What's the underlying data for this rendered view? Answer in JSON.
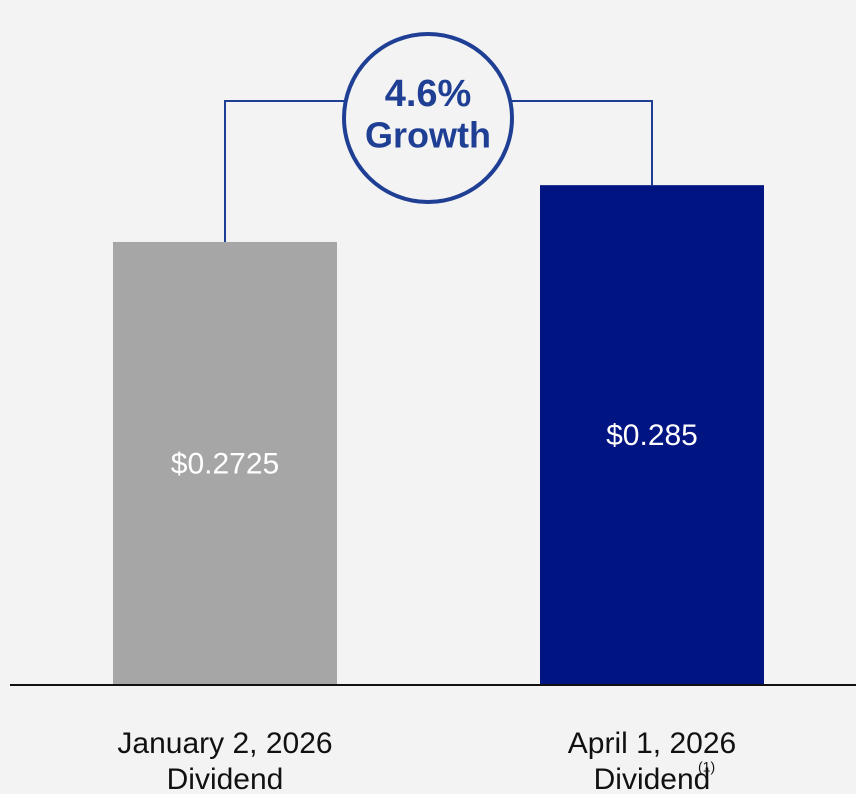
{
  "chart_data": {
    "type": "bar",
    "categories": [
      [
        "January 2, 2026",
        "Dividend"
      ],
      [
        "April 1, 2026",
        "Dividend"
      ]
    ],
    "category_footnotes": [
      null,
      "(1)"
    ],
    "values": [
      0.2725,
      0.285
    ],
    "value_labels": [
      "$0.2725",
      "$0.285"
    ],
    "colors": [
      "#a6a6a6",
      "#001581"
    ],
    "ylim": [
      0.175,
      0.3
    ],
    "annotation": {
      "value": 4.6,
      "label": "4.6%",
      "text": "Growth",
      "color": "#1f3f95"
    }
  }
}
